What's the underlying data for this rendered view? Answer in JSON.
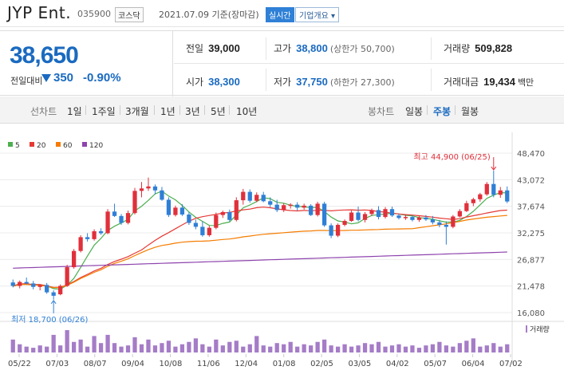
{
  "header": {
    "name": "JYP Ent.",
    "code": "035900",
    "market": "코스닥",
    "date": "2021.07.09 기준(장마감)",
    "live_label": "실시간",
    "company_label": "기업개요 ▾"
  },
  "quote": {
    "price": "38,650",
    "change_label": "전일대비",
    "change": "350",
    "change_pct": "-0.90%",
    "prev_close_label": "전일",
    "prev_close": "39,000",
    "high_label": "고가",
    "high": "38,800",
    "upper_limit": "(상한가 50,700)",
    "volume_label": "거래량",
    "volume": "509,828",
    "open_label": "시가",
    "open": "38,300",
    "low_label": "저가",
    "low": "37,750",
    "lower_limit": "(하한가 27,300)",
    "amount_label": "거래대금",
    "amount": "19,434",
    "amount_unit": "백만"
  },
  "tabs": {
    "line_label": "선차트",
    "line_items": [
      "1일",
      "1주일",
      "3개월",
      "1년",
      "3년",
      "5년",
      "10년"
    ],
    "candle_label": "봉차트",
    "candle_items": [
      "일봉",
      "주봉",
      "월봉"
    ],
    "candle_active": "주봉"
  },
  "chart_data": {
    "type": "candlestick",
    "legend": [
      "5",
      "20",
      "60",
      "120"
    ],
    "legend_colors": [
      "#4caf50",
      "#e53935",
      "#f57c00",
      "#8e44ad"
    ],
    "up_color": "#e0303b",
    "down_color": "#2f7fd6",
    "y_ticks": [
      "48,470",
      "43,072",
      "37,674",
      "32,275",
      "26,877",
      "21,478",
      "16,080"
    ],
    "ylim": [
      16080,
      48470
    ],
    "x_ticks": [
      "05/22",
      "07/03",
      "08/07",
      "09/04",
      "10/08",
      "11/06",
      "12/04",
      "01/08",
      "02/05",
      "03/05",
      "04/02",
      "05/07",
      "06/04",
      "07/02"
    ],
    "high_annotation": "최고 44,900 (06/25)",
    "low_annotation": "최저 18,700 (06/26)",
    "volume_label": "거래량",
    "candles": [
      [
        22200,
        22800,
        21200,
        21500
      ],
      [
        21500,
        22600,
        21000,
        22300
      ],
      [
        22300,
        23200,
        21800,
        22000
      ],
      [
        22000,
        22500,
        20800,
        21300
      ],
      [
        21300,
        21800,
        20600,
        21700
      ],
      [
        21700,
        22100,
        19900,
        20200
      ],
      [
        20200,
        20600,
        18700,
        19500
      ],
      [
        19800,
        21800,
        19600,
        21500
      ],
      [
        21500,
        25800,
        21300,
        25300
      ],
      [
        25300,
        29000,
        25000,
        28600
      ],
      [
        28600,
        31800,
        28300,
        31400
      ],
      [
        31400,
        32200,
        30500,
        31000
      ],
      [
        31000,
        33000,
        30700,
        32600
      ],
      [
        32600,
        33200,
        31900,
        32200
      ],
      [
        32200,
        37100,
        32000,
        36600
      ],
      [
        36600,
        38200,
        35500,
        35700
      ],
      [
        35700,
        36100,
        33900,
        34300
      ],
      [
        34300,
        36800,
        34000,
        36300
      ],
      [
        36300,
        41400,
        36000,
        40800
      ],
      [
        40800,
        42600,
        39500,
        41300
      ],
      [
        41300,
        43500,
        40800,
        41700
      ],
      [
        41700,
        42100,
        40100,
        40900
      ],
      [
        40900,
        41600,
        38800,
        39000
      ],
      [
        39000,
        39500,
        35500,
        35900
      ],
      [
        35900,
        37800,
        35600,
        37400
      ],
      [
        37400,
        38100,
        35700,
        36000
      ],
      [
        36000,
        36500,
        33900,
        34300
      ],
      [
        34300,
        35000,
        33000,
        33500
      ],
      [
        33500,
        34600,
        31500,
        31800
      ],
      [
        31800,
        33700,
        31500,
        33300
      ],
      [
        33300,
        36400,
        33000,
        35900
      ],
      [
        35900,
        36800,
        35300,
        36500
      ],
      [
        36500,
        37000,
        34600,
        34900
      ],
      [
        34900,
        39500,
        34600,
        38900
      ],
      [
        38900,
        41200,
        38000,
        40600
      ],
      [
        40600,
        41100,
        38400,
        38800
      ],
      [
        38800,
        40500,
        38500,
        40000
      ],
      [
        40000,
        40600,
        38500,
        38700
      ],
      [
        38700,
        39500,
        37500,
        38000
      ],
      [
        38000,
        39000,
        36500,
        36900
      ],
      [
        36900,
        38300,
        36500,
        37900
      ],
      [
        37900,
        38300,
        37200,
        38000
      ],
      [
        38000,
        38500,
        36800,
        37400
      ],
      [
        37400,
        38200,
        37000,
        37800
      ],
      [
        37800,
        38100,
        35700,
        35900
      ],
      [
        35900,
        38600,
        35600,
        38200
      ],
      [
        38200,
        38600,
        33500,
        33800
      ],
      [
        33800,
        34200,
        31200,
        31700
      ],
      [
        31700,
        34200,
        31400,
        33900
      ],
      [
        33900,
        35000,
        33600,
        34700
      ],
      [
        34700,
        36800,
        34500,
        36400
      ],
      [
        36400,
        37600,
        34600,
        34900
      ],
      [
        34900,
        36500,
        34400,
        36100
      ],
      [
        36100,
        37200,
        35700,
        36900
      ],
      [
        36900,
        37700,
        35000,
        35500
      ],
      [
        35500,
        37500,
        35200,
        37100
      ],
      [
        37100,
        37600,
        35500,
        35800
      ],
      [
        35800,
        36100,
        35000,
        35300
      ],
      [
        35300,
        36000,
        34900,
        35500
      ],
      [
        35500,
        35800,
        34600,
        34900
      ],
      [
        34900,
        35800,
        34500,
        35400
      ],
      [
        35400,
        35900,
        34700,
        35000
      ],
      [
        35000,
        35700,
        34000,
        34400
      ],
      [
        34400,
        34900,
        33400,
        33900
      ],
      [
        33900,
        34600,
        29900,
        33500
      ],
      [
        33500,
        35900,
        33200,
        35600
      ],
      [
        35600,
        37100,
        35400,
        36700
      ],
      [
        36700,
        38800,
        36500,
        38300
      ],
      [
        38300,
        39400,
        37700,
        39100
      ],
      [
        39100,
        40400,
        38600,
        40100
      ],
      [
        40100,
        42600,
        39800,
        42200
      ],
      [
        42200,
        44900,
        39500,
        40000
      ],
      [
        40000,
        41600,
        39400,
        40900
      ],
      [
        40900,
        41700,
        38300,
        38650
      ]
    ],
    "volume": [
      22,
      14,
      10,
      8,
      12,
      10,
      30,
      12,
      38,
      18,
      22,
      10,
      28,
      16,
      30,
      16,
      10,
      12,
      26,
      14,
      22,
      12,
      16,
      20,
      10,
      14,
      18,
      24,
      14,
      10,
      22,
      12,
      18,
      20,
      10,
      14,
      28,
      12,
      10,
      16,
      14,
      18,
      10,
      14,
      12,
      18,
      22,
      12,
      10,
      14,
      10,
      12,
      16,
      14,
      18,
      10,
      12,
      14,
      10,
      12,
      8,
      12,
      14,
      18,
      12,
      10,
      16,
      20,
      24,
      10,
      12,
      16,
      10,
      14
    ]
  }
}
